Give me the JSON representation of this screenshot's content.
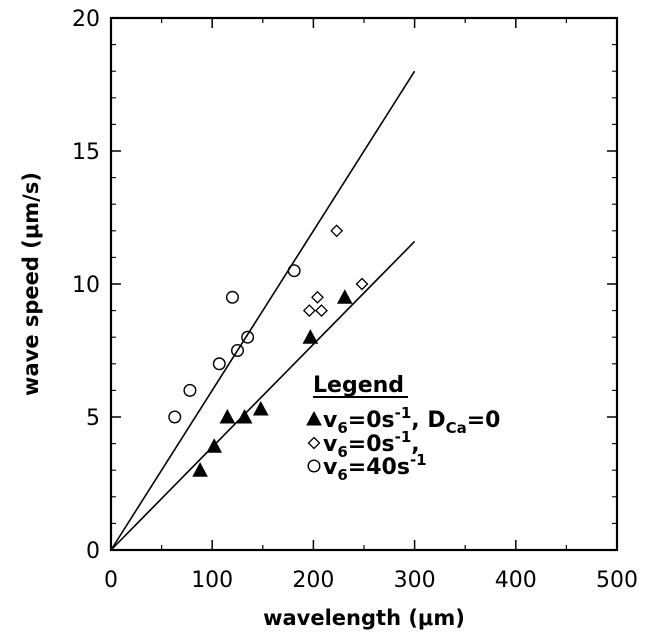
{
  "chart_data": {
    "type": "scatter",
    "xlabel": "wavelength (μm)",
    "ylabel": "wave speed (μm/s)",
    "xlim": [
      0,
      500
    ],
    "ylim": [
      0,
      20
    ],
    "x_ticks": [
      "0",
      "100",
      "200",
      "300",
      "400",
      "500"
    ],
    "y_ticks": [
      "0",
      "5",
      "10",
      "15",
      "20"
    ],
    "x_tick_values": [
      0,
      100,
      200,
      300,
      400,
      500
    ],
    "y_tick_values": [
      0,
      5,
      10,
      15,
      20
    ],
    "grid": false,
    "legend_position": "center-right",
    "legend": {
      "title": "Legend",
      "entries": [
        {
          "marker": "filled-triangle",
          "base": "v",
          "sub": "6",
          "mid": "=0s",
          "sup": "-1",
          "extra_pre": ", D",
          "extra_sub": "Ca",
          "extra_post": "=0"
        },
        {
          "marker": "open-diamond",
          "base": "v",
          "sub": "6",
          "mid": "=0s",
          "sup": "-1",
          "tail": ","
        },
        {
          "marker": "open-circle",
          "base": "v",
          "sub": "6",
          "mid": "=40s",
          "sup": "-1"
        }
      ]
    },
    "series": [
      {
        "marker": "filled-triangle",
        "points": [
          [
            88,
            3.0
          ],
          [
            102,
            3.9
          ],
          [
            115,
            5.0
          ],
          [
            132,
            5.0
          ],
          [
            148,
            5.3
          ],
          [
            197,
            8.0
          ],
          [
            231,
            9.5
          ]
        ]
      },
      {
        "marker": "open-diamond",
        "points": [
          [
            196,
            9.0
          ],
          [
            204,
            9.5
          ],
          [
            208,
            9.0
          ],
          [
            223,
            12.0
          ],
          [
            248,
            10.0
          ]
        ]
      },
      {
        "marker": "open-circle",
        "points": [
          [
            63,
            5.0
          ],
          [
            78,
            6.0
          ],
          [
            107,
            7.0
          ],
          [
            120,
            9.5
          ],
          [
            125,
            7.5
          ],
          [
            135,
            8.0
          ],
          [
            181,
            10.5
          ]
        ]
      }
    ],
    "fit_lines": [
      {
        "from": [
          0,
          0
        ],
        "to": [
          300,
          18.0
        ]
      },
      {
        "from": [
          0,
          0
        ],
        "to": [
          300,
          11.6
        ]
      }
    ]
  }
}
